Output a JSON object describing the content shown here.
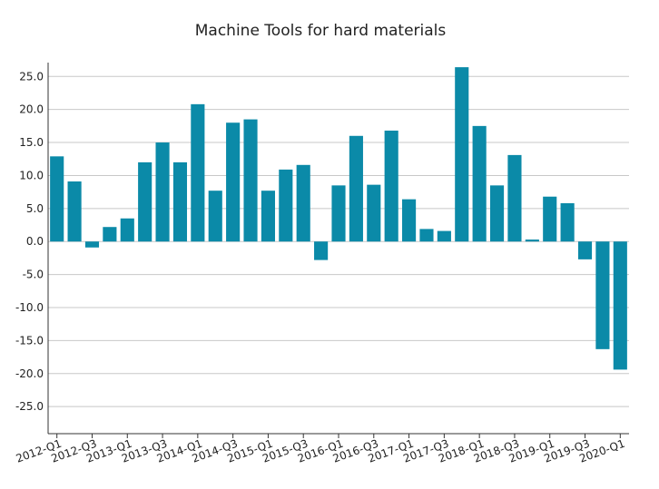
{
  "chart_data": {
    "type": "bar",
    "title": "Machine Tools for hard materials",
    "categories": [
      "2012-Q1",
      null,
      "2012-Q3",
      null,
      "2013-Q1",
      null,
      "2013-Q3",
      null,
      "2014-Q1",
      null,
      "2014-Q3",
      null,
      "2015-Q1",
      null,
      "2015-Q3",
      null,
      "2016-Q1",
      null,
      "2016-Q3",
      null,
      "2017-Q1",
      null,
      "2017-Q3",
      null,
      "2018-Q1",
      null,
      "2018-Q3",
      null,
      "2019-Q1",
      null,
      "2019-Q3",
      null,
      "2020-Q1"
    ],
    "values": [
      12.9,
      9.1,
      -0.9,
      2.2,
      3.5,
      12.0,
      15.0,
      12.0,
      20.8,
      7.7,
      18.0,
      18.5,
      7.7,
      10.9,
      11.6,
      -2.8,
      8.5,
      16.0,
      8.6,
      16.8,
      6.4,
      1.9,
      1.6,
      26.4,
      17.5,
      8.5,
      13.1,
      0.3,
      6.8,
      5.8,
      -2.7,
      -16.3,
      -19.4
    ],
    "color": "#0b8aa8",
    "ylim": [
      -29.1,
      27.1
    ],
    "yticks": [
      {
        "value": -25,
        "label": "-25.0"
      },
      {
        "value": -20,
        "label": "-20.0"
      },
      {
        "value": -15,
        "label": "-15.0"
      },
      {
        "value": -10,
        "label": "-10.0"
      },
      {
        "value": -5,
        "label": "-5.0"
      },
      {
        "value": 0,
        "label": "0.0"
      },
      {
        "value": 5,
        "label": "5.0"
      },
      {
        "value": 10,
        "label": "10.0"
      },
      {
        "value": 15,
        "label": "15.0"
      },
      {
        "value": 20,
        "label": "20.0"
      },
      {
        "value": 25,
        "label": "25.0"
      }
    ],
    "grid": true
  }
}
